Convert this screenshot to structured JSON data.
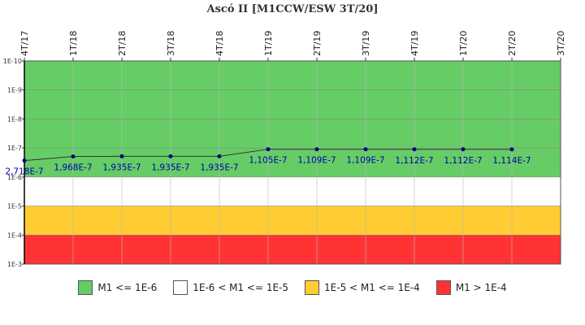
{
  "chart_data": {
    "type": "line",
    "title": "Ascó II [M1CCW/ESW 3T/20]",
    "y_scale": "log",
    "y_inverted": true,
    "ylim": [
      1e-10,
      0.001
    ],
    "y_ticks": [
      {
        "value": 1e-10,
        "label": "1E-10"
      },
      {
        "value": 1e-09,
        "label": "1E-9"
      },
      {
        "value": 1e-08,
        "label": "1E-8"
      },
      {
        "value": 1e-07,
        "label": "1E-7"
      },
      {
        "value": 1e-06,
        "label": "1E-6"
      },
      {
        "value": 1e-05,
        "label": "1E-5"
      },
      {
        "value": 0.0001,
        "label": "1E-4"
      },
      {
        "value": 0.001,
        "label": "1E-3"
      }
    ],
    "categories": [
      "4T/17",
      "1T/18",
      "2T/18",
      "3T/18",
      "4T/18",
      "1T/19",
      "2T/19",
      "3T/19",
      "4T/19",
      "1T/20",
      "2T/20",
      "3T/20"
    ],
    "series": [
      {
        "color": "#000080",
        "values": [
          2.718e-07,
          1.968e-07,
          1.935e-07,
          1.935e-07,
          1.935e-07,
          1.105e-07,
          1.109e-07,
          1.109e-07,
          1.112e-07,
          1.112e-07,
          1.114e-07,
          null
        ],
        "labels": [
          "2,718E-7",
          "1,968E-7",
          "1,935E-7",
          "1,935E-7",
          "1,935E-7",
          "1,105E-7",
          "1,109E-7",
          "1,109E-7",
          "1,112E-7",
          "1,112E-7",
          "1,114E-7",
          ""
        ]
      }
    ],
    "bands": [
      {
        "from": 1e-10,
        "to": 1e-06,
        "color": "#66cc66",
        "label": "M1 <= 1E-6"
      },
      {
        "from": 1e-06,
        "to": 1e-05,
        "color": "#ffffff",
        "label": "1E-6 < M1 <= 1E-5"
      },
      {
        "from": 1e-05,
        "to": 0.0001,
        "color": "#ffcc33",
        "label": "1E-5 < M1 <= 1E-4"
      },
      {
        "from": 0.0001,
        "to": 0.001,
        "color": "#ff3333",
        "label": "M1 > 1E-4"
      }
    ],
    "legend_position": "bottom",
    "grid": true
  }
}
